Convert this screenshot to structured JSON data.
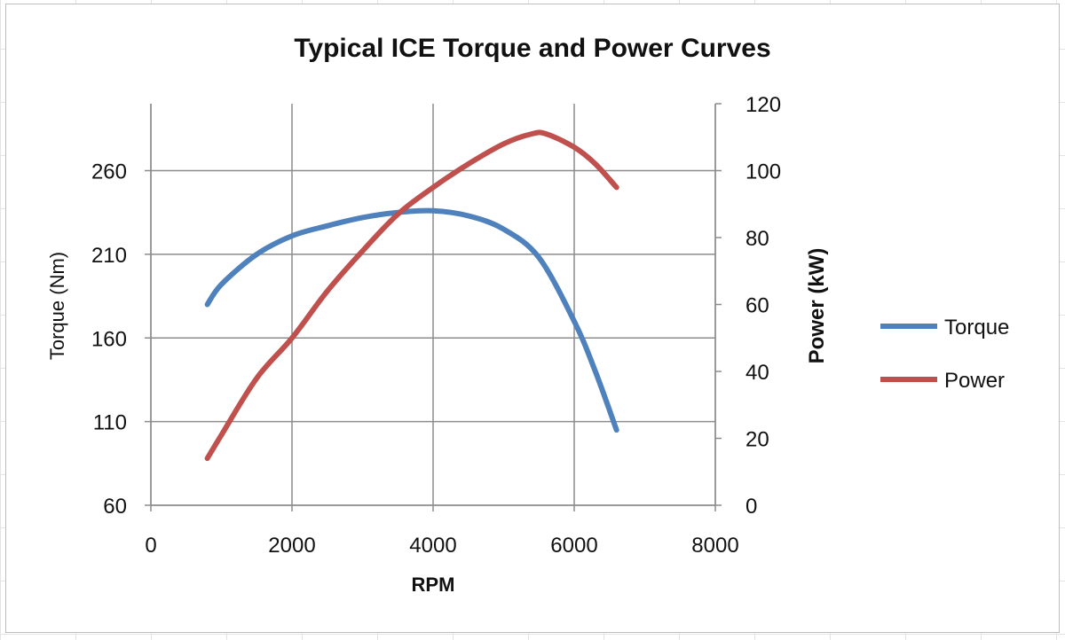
{
  "chart_data": {
    "type": "line",
    "title": "Typical ICE Torque and Power Curves",
    "xlabel": "RPM",
    "ylabel": "Torque (Nm)",
    "y2label": "Power (kW)",
    "xlim": [
      0,
      8000
    ],
    "ylim": [
      60,
      300
    ],
    "y2lim": [
      0,
      120
    ],
    "xticks": [
      0,
      2000,
      4000,
      6000,
      8000
    ],
    "yticks": [
      60,
      110,
      160,
      210,
      260
    ],
    "y2ticks": [
      0,
      20,
      40,
      60,
      80,
      100,
      120
    ],
    "grid": true,
    "legend": "right",
    "series": [
      {
        "name": "Torque",
        "axis": "left",
        "color": "#4f81bd",
        "x": [
          800,
          1000,
          1500,
          2000,
          2500,
          3000,
          3500,
          4000,
          4500,
          5000,
          5500,
          6000,
          6300,
          6600
        ],
        "values": [
          180,
          192,
          210,
          221,
          227,
          232,
          235,
          236,
          233,
          225,
          208,
          170,
          140,
          105
        ]
      },
      {
        "name": "Power",
        "axis": "right",
        "color": "#c0504d",
        "x": [
          800,
          1000,
          1500,
          2000,
          2500,
          3000,
          3500,
          4000,
          4500,
          5000,
          5400,
          5600,
          6000,
          6300,
          6600
        ],
        "values": [
          14,
          21,
          38,
          50,
          64,
          76,
          87,
          95,
          102,
          108,
          111,
          111,
          107,
          102,
          95
        ]
      }
    ]
  }
}
